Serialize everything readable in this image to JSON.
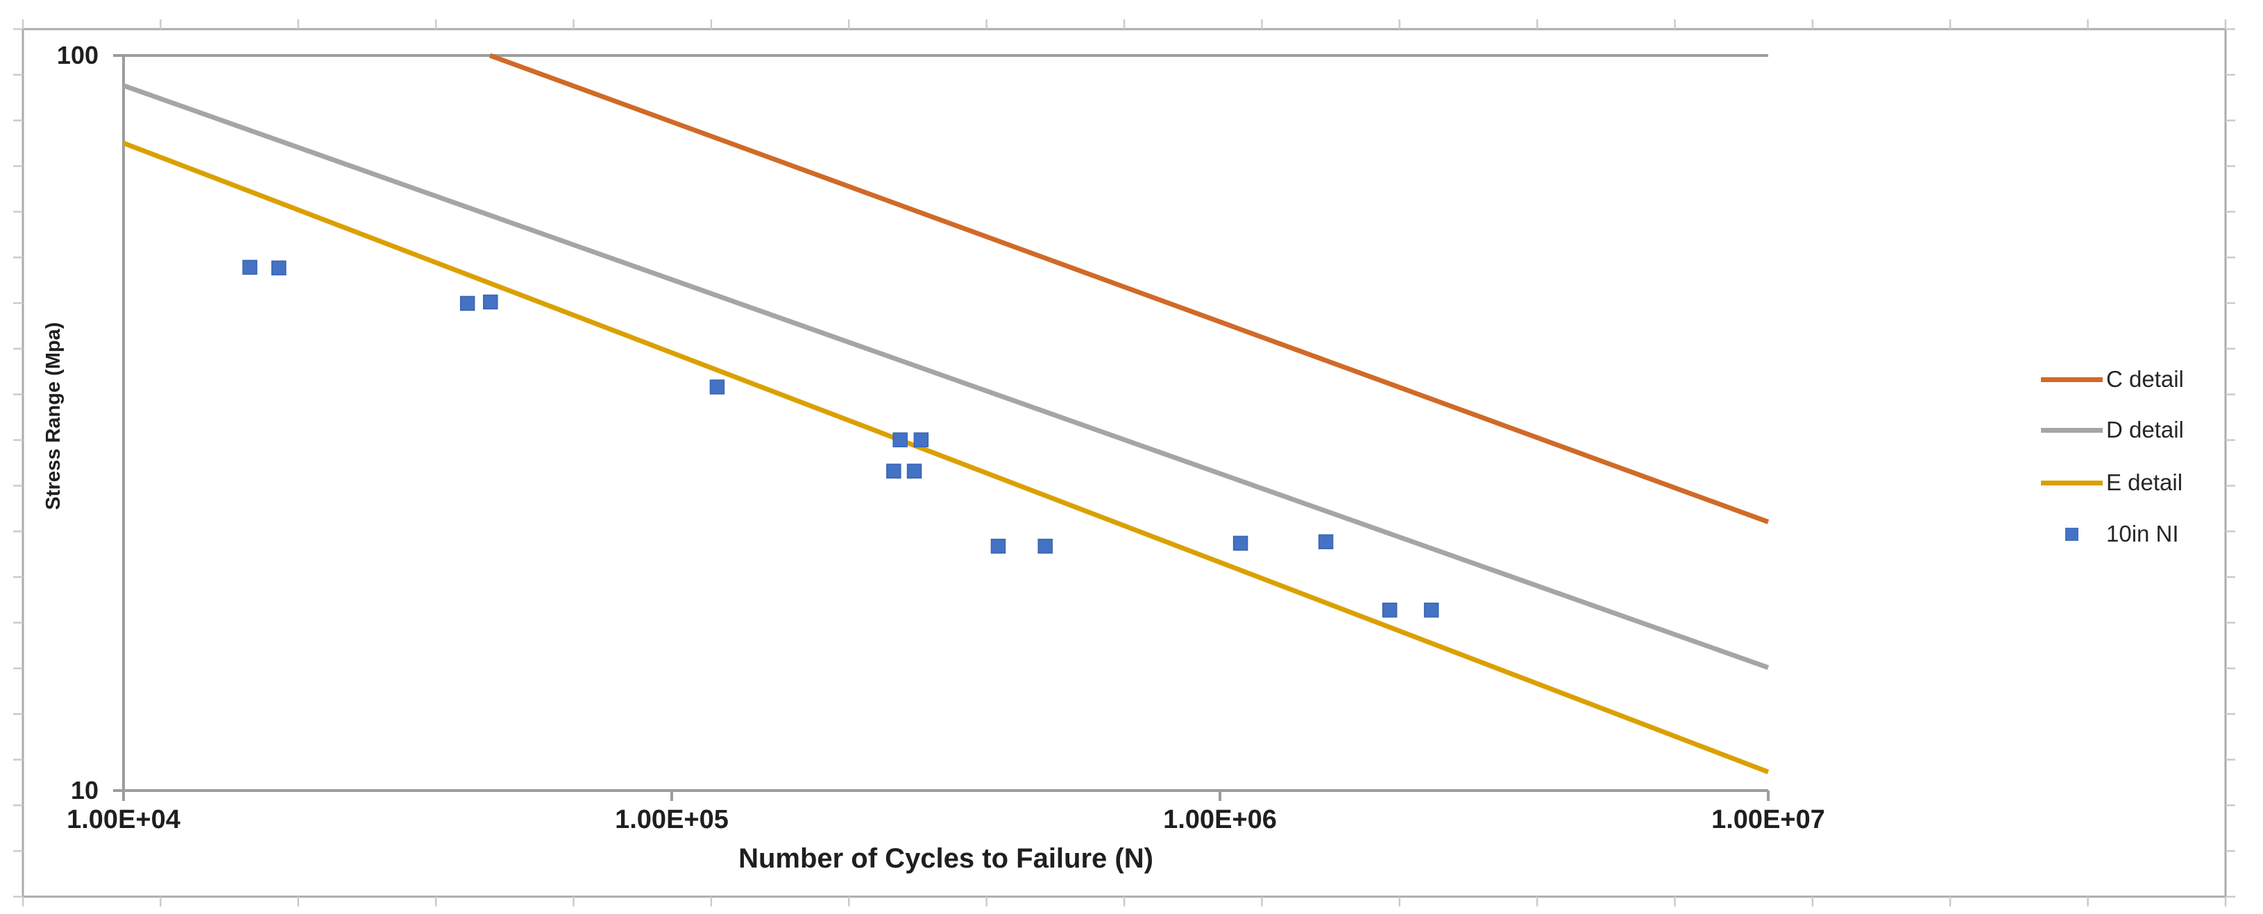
{
  "chart_data": {
    "type": "line+scatter",
    "title": "",
    "xlabel": "Number of Cycles to Failure (N)",
    "ylabel": "Stress Range (Mpa)",
    "x_scale": "log",
    "y_scale": "log",
    "xlim": [
      10000,
      10000000
    ],
    "ylim": [
      10,
      100
    ],
    "grid": false,
    "legend_position": "right",
    "x_ticks": [
      {
        "label": "1.00E+04",
        "value": 10000
      },
      {
        "label": "1.00E+05",
        "value": 100000
      },
      {
        "label": "1.00E+06",
        "value": 1000000
      },
      {
        "label": "1.00E+07",
        "value": 10000000
      }
    ],
    "y_ticks": [
      {
        "label": "100",
        "value": 100
      },
      {
        "label": "10",
        "value": 10
      }
    ],
    "series": [
      {
        "name": "C detail",
        "kind": "line",
        "color": "#D06A28",
        "points": [
          [
            46600,
            100
          ],
          [
            10000000,
            23.2
          ]
        ]
      },
      {
        "name": "D detail",
        "kind": "line",
        "color": "#A5A5A5",
        "points": [
          [
            10000,
            91
          ],
          [
            10000000,
            14.7
          ]
        ]
      },
      {
        "name": "E detail",
        "kind": "line",
        "color": "#DBA000",
        "points": [
          [
            10000,
            76
          ],
          [
            10000000,
            10.6
          ]
        ]
      },
      {
        "name": "10in NI",
        "kind": "scatter",
        "color": "#4472C4",
        "points": [
          [
            17000,
            51.5
          ],
          [
            19200,
            51.4
          ],
          [
            42400,
            46.0
          ],
          [
            46700,
            46.2
          ],
          [
            121000,
            35.4
          ],
          [
            254000,
            27.2
          ],
          [
            261000,
            30.0
          ],
          [
            277000,
            27.2
          ],
          [
            285000,
            30.0
          ],
          [
            394000,
            21.5
          ],
          [
            480000,
            21.5
          ],
          [
            1090000,
            21.7
          ],
          [
            1560000,
            21.8
          ],
          [
            2040000,
            17.6
          ],
          [
            2430000,
            17.6
          ]
        ]
      }
    ]
  }
}
